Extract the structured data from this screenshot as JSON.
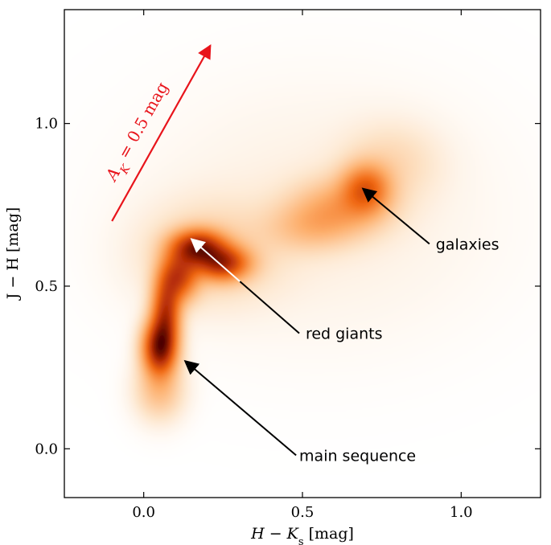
{
  "chart_data": {
    "type": "heatmap",
    "description_free": true,
    "x": {
      "label_main": "H − K",
      "label_sub": "s",
      "label_unit": "[mag]",
      "range": [
        -0.25,
        1.25
      ],
      "ticks": [
        0.0,
        0.5,
        1.0
      ],
      "tick_labels": [
        "0.0",
        "0.5",
        "1.0"
      ]
    },
    "y": {
      "label_text": "J − H [mag]",
      "range": [
        -0.15,
        1.35
      ],
      "ticks": [
        0.0,
        0.5,
        1.0
      ],
      "tick_labels": [
        "0.0",
        "0.5",
        "1.0"
      ]
    },
    "grid": false,
    "colormap": [
      "#ffffff",
      "#fde2c5",
      "#fdae6b",
      "#f16913",
      "#b22a06",
      "#4a0000"
    ],
    "density_components": [
      {
        "x": 0.05,
        "y": 0.31,
        "sx": 0.035,
        "sy": 0.055,
        "w": 1.0
      },
      {
        "x": 0.07,
        "y": 0.42,
        "sx": 0.03,
        "sy": 0.07,
        "w": 0.75
      },
      {
        "x": 0.11,
        "y": 0.53,
        "sx": 0.04,
        "sy": 0.05,
        "w": 0.65
      },
      {
        "x": 0.17,
        "y": 0.62,
        "sx": 0.055,
        "sy": 0.035,
        "w": 0.85
      },
      {
        "x": 0.25,
        "y": 0.57,
        "sx": 0.055,
        "sy": 0.035,
        "w": 0.75
      },
      {
        "x": 0.05,
        "y": 0.18,
        "sx": 0.05,
        "sy": 0.06,
        "w": 0.22
      },
      {
        "x": 0.21,
        "y": 0.6,
        "sx": 0.14,
        "sy": 0.1,
        "w": 0.15
      },
      {
        "x": 0.7,
        "y": 0.8,
        "sx": 0.05,
        "sy": 0.05,
        "w": 0.5
      },
      {
        "x": 0.62,
        "y": 0.74,
        "sx": 0.1,
        "sy": 0.06,
        "w": 0.28
      },
      {
        "x": 0.52,
        "y": 0.68,
        "sx": 0.09,
        "sy": 0.05,
        "w": 0.16
      },
      {
        "x": 0.78,
        "y": 0.88,
        "sx": 0.1,
        "sy": 0.08,
        "w": 0.1
      },
      {
        "x": 0.55,
        "y": 0.72,
        "sx": 0.35,
        "sy": 0.25,
        "w": 0.04
      }
    ],
    "annotations": [
      {
        "text": "galaxies",
        "text_x": 0.92,
        "text_y": 0.63,
        "arrow_from": [
          0.9,
          0.63
        ],
        "arrow_to": [
          0.69,
          0.8
        ],
        "arrow_color": "#000000"
      },
      {
        "text": "red giants",
        "text_x": 0.51,
        "text_y": 0.355,
        "arrow_from": [
          0.49,
          0.355
        ],
        "arrow_to": [
          0.15,
          0.645
        ],
        "arrow_color": "#000000",
        "arrow_head_color": "#ffffff"
      },
      {
        "text": "main sequence",
        "text_x": 0.49,
        "text_y": -0.02,
        "arrow_from": [
          0.48,
          -0.02
        ],
        "arrow_to": [
          0.13,
          0.27
        ],
        "arrow_color": "#000000"
      }
    ],
    "extinction_vector": {
      "label": "A",
      "label_sub": "K",
      "label_rest": " = 0.5 mag",
      "from": [
        -0.1,
        0.7
      ],
      "to": [
        0.21,
        1.24
      ],
      "color": "#e8141b"
    }
  }
}
